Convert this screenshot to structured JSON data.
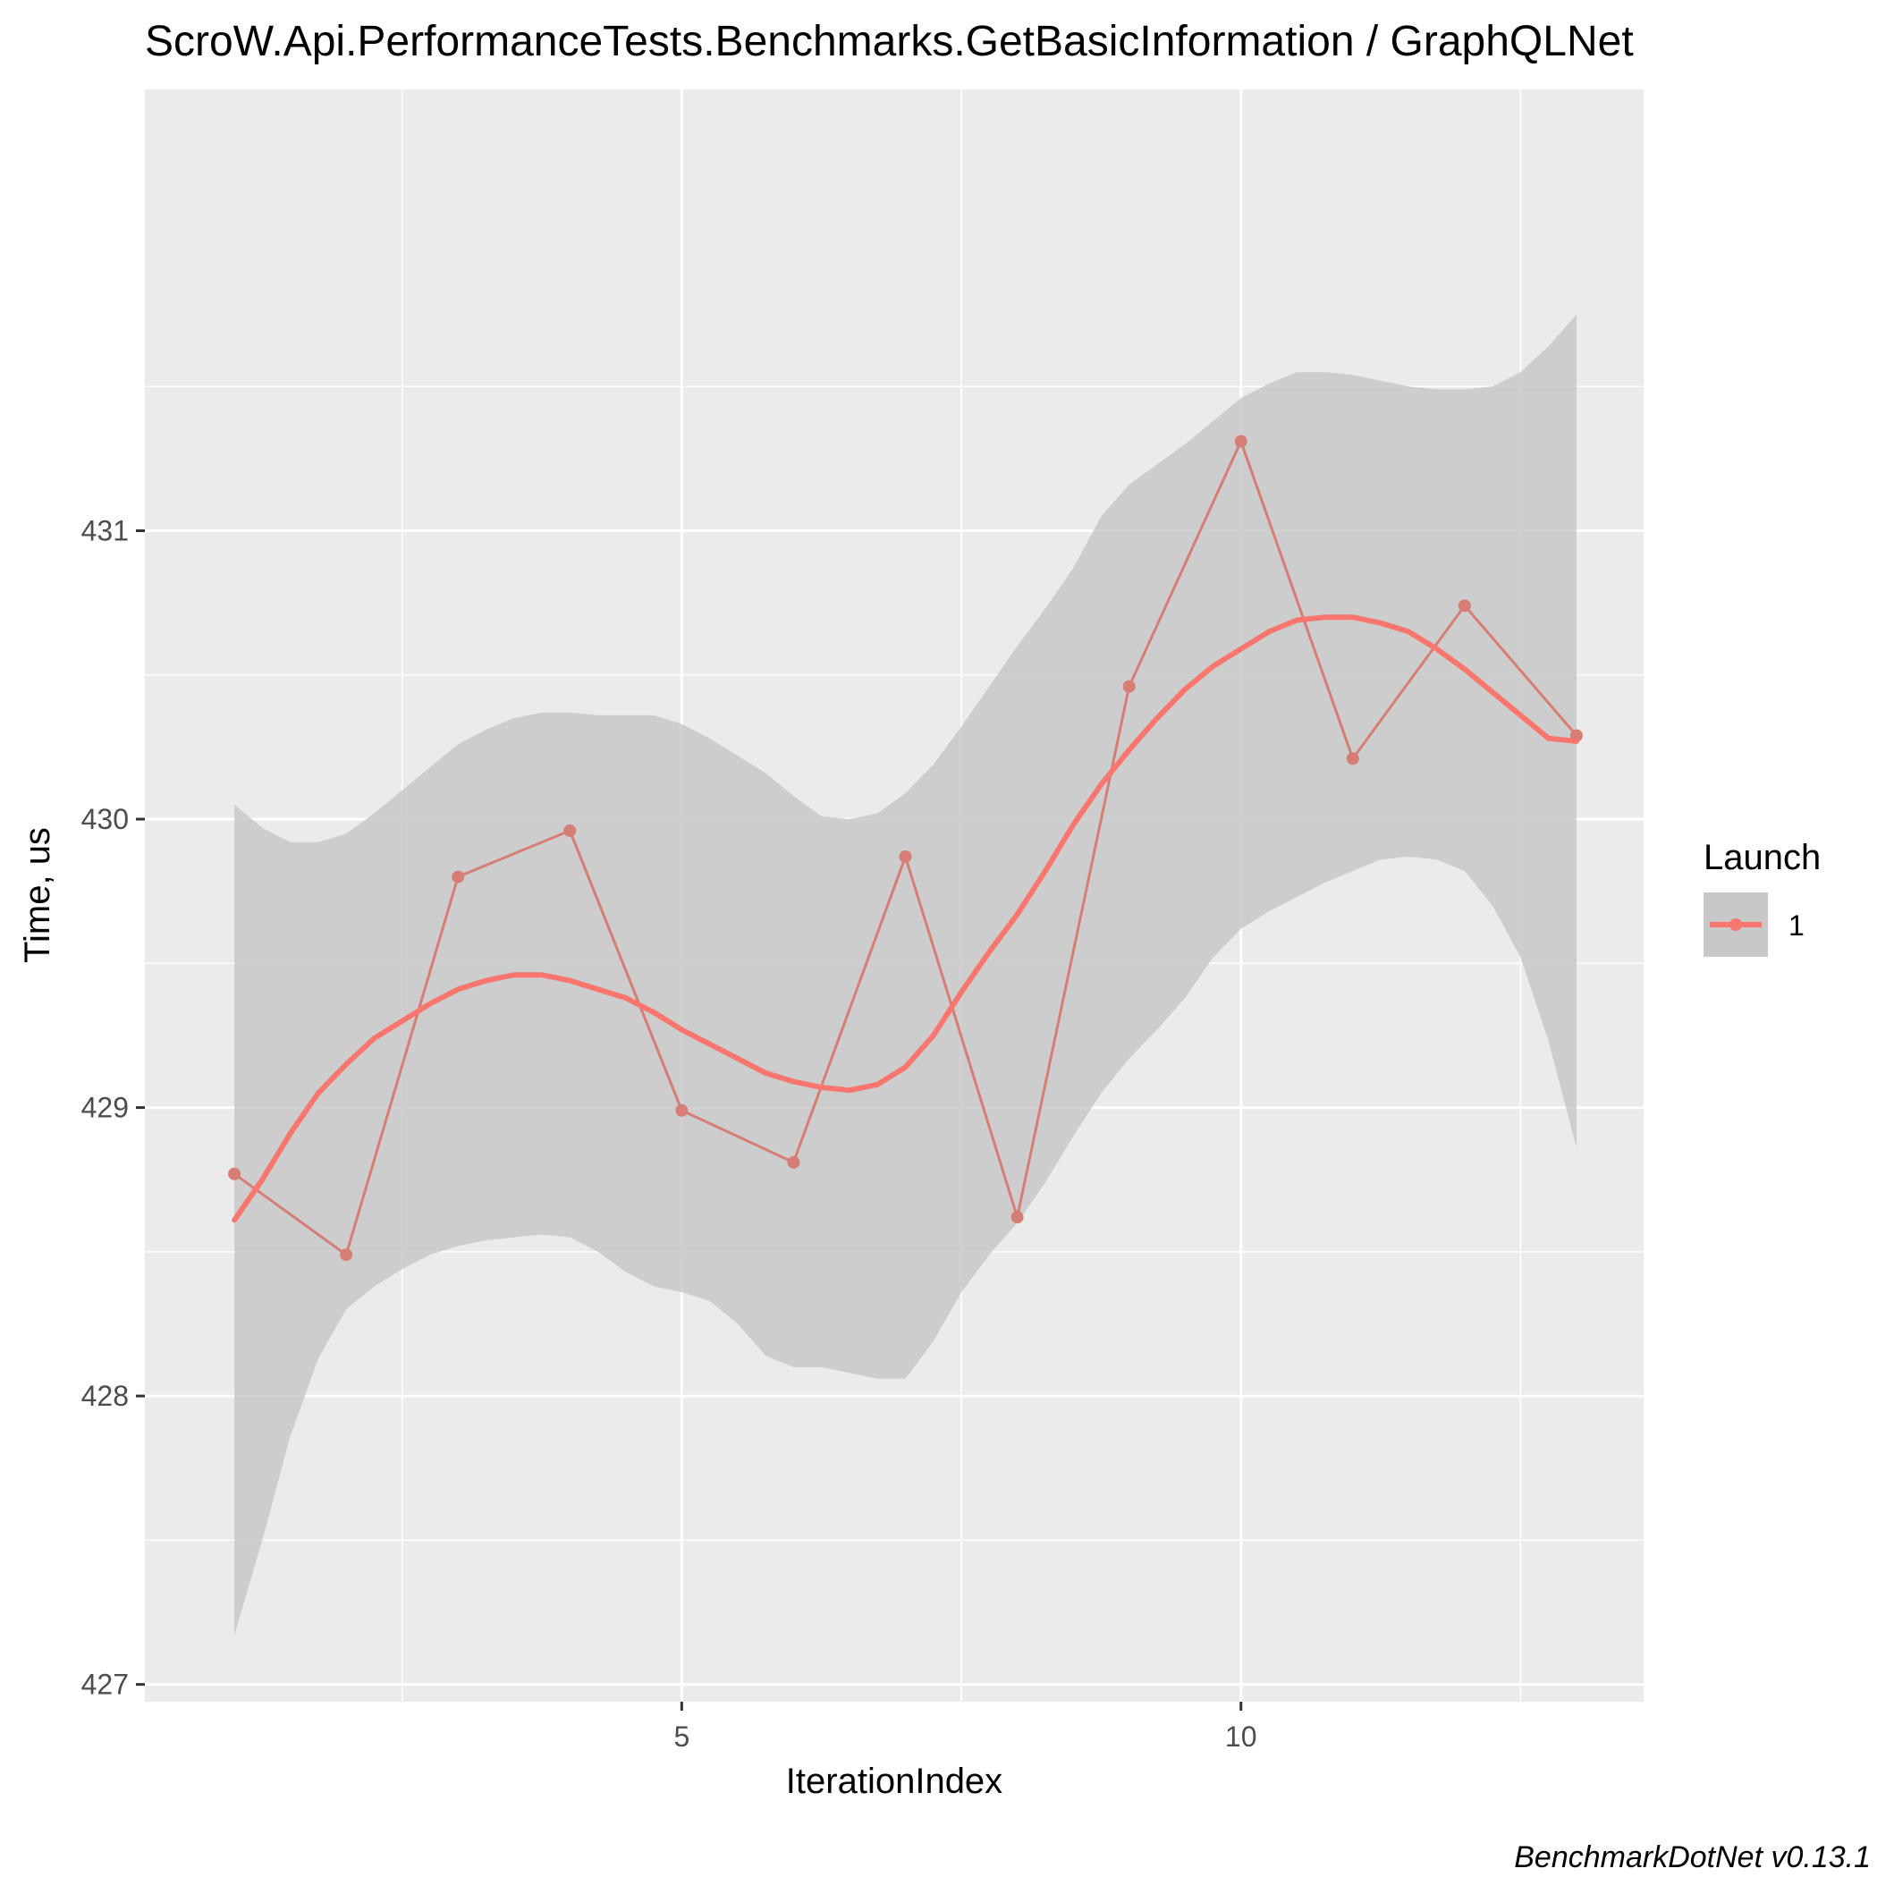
{
  "chart_data": {
    "type": "line",
    "title": "ScroW.Api.PerformanceTests.Benchmarks.GetBasicInformation / GraphQLNet",
    "xlabel": "IterationIndex",
    "ylabel": "Time, us",
    "caption": "BenchmarkDotNet v0.13.1",
    "xlim": [
      0.2,
      13.6
    ],
    "ylim": [
      426.94,
      432.53
    ],
    "x_ticks": [
      5,
      10
    ],
    "x_tick_labels": [
      "5",
      "10"
    ],
    "x_minor_ticks": [
      2.5,
      7.5,
      12.5
    ],
    "y_ticks": [
      427,
      428,
      429,
      430,
      431
    ],
    "y_tick_labels": [
      "427",
      "428",
      "429",
      "430",
      "431"
    ],
    "y_minor_ticks": [
      427.5,
      428.5,
      429.5,
      430.5,
      431.5
    ],
    "grid": true,
    "legend": {
      "title": "Launch",
      "position": "right",
      "entries": [
        "1"
      ]
    },
    "colors": {
      "series": "#f8766d",
      "raw_line": "#d67d76",
      "ribbon": "#c8c8c8",
      "panel": "#ebebeb",
      "grid": "#ffffff"
    },
    "series": [
      {
        "name": "1",
        "x": [
          1,
          2,
          3,
          4,
          5,
          6,
          7,
          8,
          9,
          10,
          11,
          12,
          13
        ],
        "values": [
          428.77,
          428.49,
          429.8,
          429.96,
          428.99,
          428.81,
          429.87,
          428.62,
          430.46,
          431.31,
          430.21,
          430.74,
          430.29
        ]
      }
    ],
    "smooth": {
      "x": [
        1,
        1.25,
        1.5,
        1.75,
        2,
        2.25,
        2.5,
        2.75,
        3,
        3.25,
        3.5,
        3.75,
        4,
        4.25,
        4.5,
        4.75,
        5,
        5.25,
        5.5,
        5.75,
        6,
        6.25,
        6.5,
        6.75,
        7,
        7.25,
        7.5,
        7.75,
        8,
        8.25,
        8.5,
        8.75,
        9,
        9.25,
        9.5,
        9.75,
        10,
        10.25,
        10.5,
        10.75,
        11,
        11.25,
        11.5,
        11.75,
        12,
        12.25,
        12.5,
        12.75,
        13
      ],
      "fit": [
        428.61,
        428.75,
        428.91,
        429.05,
        429.15,
        429.24,
        429.3,
        429.36,
        429.41,
        429.44,
        429.46,
        429.46,
        429.44,
        429.41,
        429.38,
        429.33,
        429.27,
        429.22,
        429.17,
        429.12,
        429.09,
        429.07,
        429.06,
        429.08,
        429.14,
        429.25,
        429.4,
        429.54,
        429.67,
        429.82,
        429.98,
        430.12,
        430.24,
        430.35,
        430.45,
        430.53,
        430.59,
        430.65,
        430.69,
        430.7,
        430.7,
        430.68,
        430.65,
        430.59,
        430.52,
        430.44,
        430.36,
        430.28,
        430.27
      ],
      "lower": [
        427.17,
        427.5,
        427.86,
        428.13,
        428.3,
        428.38,
        428.44,
        428.49,
        428.52,
        428.54,
        428.55,
        428.56,
        428.55,
        428.5,
        428.43,
        428.38,
        428.36,
        428.33,
        428.25,
        428.14,
        428.1,
        428.1,
        428.08,
        428.06,
        428.06,
        428.19,
        428.36,
        428.49,
        428.6,
        428.74,
        428.9,
        429.05,
        429.17,
        429.27,
        429.38,
        429.52,
        429.62,
        429.68,
        429.73,
        429.78,
        429.82,
        429.86,
        429.87,
        429.86,
        429.82,
        429.7,
        429.52,
        429.23,
        428.86
      ],
      "upper": [
        430.05,
        429.97,
        429.92,
        429.92,
        429.95,
        430.02,
        430.1,
        430.18,
        430.26,
        430.31,
        430.35,
        430.37,
        430.37,
        430.36,
        430.36,
        430.36,
        430.33,
        430.28,
        430.22,
        430.16,
        430.08,
        430.01,
        430.0,
        430.02,
        430.09,
        430.19,
        430.32,
        430.46,
        430.6,
        430.73,
        430.87,
        431.05,
        431.16,
        431.23,
        431.3,
        431.38,
        431.46,
        431.51,
        431.55,
        431.55,
        431.54,
        431.52,
        431.5,
        431.49,
        431.49,
        431.5,
        431.55,
        431.64,
        431.75
      ]
    }
  }
}
